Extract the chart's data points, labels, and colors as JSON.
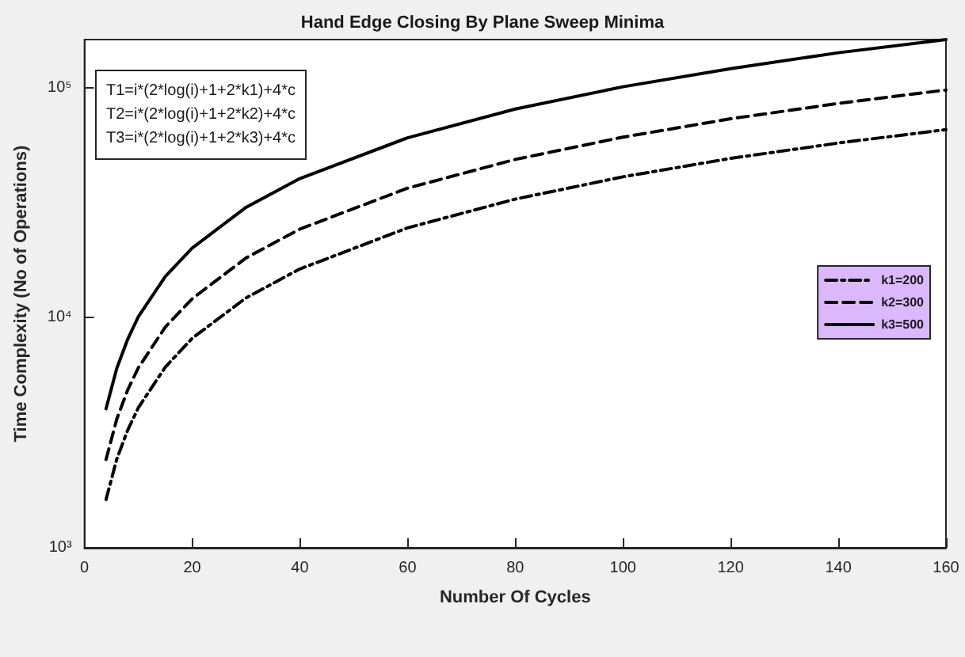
{
  "chart_data": {
    "type": "line",
    "title": "Hand Edge Closing By Plane Sweep Minima",
    "xlabel": "Number Of Cycles",
    "ylabel": "Time Complexity (No of Operations)",
    "x": [
      4,
      6,
      8,
      10,
      15,
      20,
      30,
      40,
      60,
      80,
      100,
      120,
      140,
      160
    ],
    "series": [
      {
        "name": "k1=200",
        "color": "#000000",
        "line_style": "dashdot",
        "values": [
          1620,
          2430,
          3240,
          4060,
          6100,
          8140,
          12200,
          16300,
          24600,
          32800,
          41000,
          49300,
          57500,
          65800
        ]
      },
      {
        "name": "k2=300",
        "color": "#000000",
        "line_style": "dashed",
        "values": [
          2420,
          3630,
          4840,
          6060,
          9100,
          12100,
          18200,
          24300,
          36600,
          48800,
          61000,
          73300,
          85500,
          97800
        ]
      },
      {
        "name": "k3=500",
        "color": "#000000",
        "line_style": "solid",
        "values": [
          4020,
          6030,
          8040,
          10100,
          15100,
          20100,
          30200,
          40300,
          60600,
          80800,
          101000,
          121000,
          142000,
          162000
        ]
      }
    ],
    "annotations": [
      "T1=i*(2*log(i)+1+2*k1)+4*c",
      "T2=i*(2*log(i)+1+2*k2)+4*c",
      "T3=i*(2*log(i)+1+2*k3)+4*c"
    ],
    "log": "y",
    "xlim": [
      0,
      160
    ],
    "ylim": [
      1000,
      162000
    ],
    "xticks": [
      0,
      20,
      40,
      60,
      80,
      100,
      120,
      140,
      160
    ],
    "yticks": [
      {
        "value": 1000,
        "label": "10³"
      },
      {
        "value": 10000,
        "label": "10⁴"
      },
      {
        "value": 100000,
        "label": "10⁵"
      }
    ],
    "grid": false,
    "legend": "right",
    "marker": "none"
  }
}
